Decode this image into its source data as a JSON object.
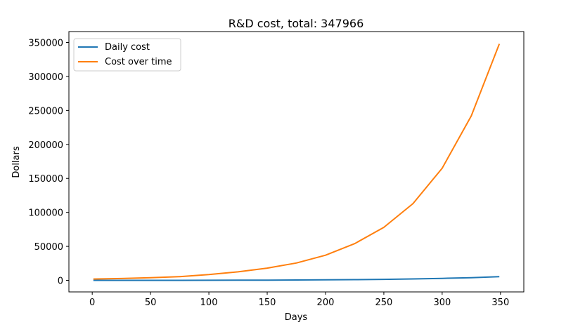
{
  "chart_data": {
    "type": "line",
    "title": "R&D cost, total: 347966",
    "xlabel": "Days",
    "ylabel": "Dollars",
    "xlim": [
      -20,
      370
    ],
    "ylim": [
      -17000,
      366000
    ],
    "xticks": [
      0,
      50,
      100,
      150,
      200,
      250,
      300,
      350
    ],
    "yticks": [
      0,
      50000,
      100000,
      150000,
      200000,
      250000,
      300000,
      350000
    ],
    "grid": false,
    "legend_position": "upper-left",
    "series": [
      {
        "name": "Daily cost",
        "color": "#1f77b4",
        "x": [
          1,
          25,
          50,
          75,
          100,
          125,
          150,
          175,
          200,
          225,
          250,
          275,
          300,
          325,
          349
        ],
        "y": [
          0,
          0,
          0,
          50,
          100,
          200,
          300,
          500,
          800,
          1100,
          1500,
          2100,
          2900,
          4000,
          5400
        ]
      },
      {
        "name": "Cost over time",
        "color": "#ff7f0e",
        "x": [
          1,
          25,
          50,
          75,
          100,
          125,
          150,
          175,
          200,
          225,
          250,
          275,
          300,
          325,
          349
        ],
        "y": [
          2000,
          2700,
          4000,
          5500,
          8500,
          12500,
          18000,
          25500,
          37000,
          54000,
          78000,
          113000,
          165000,
          242000,
          347966
        ]
      }
    ]
  }
}
